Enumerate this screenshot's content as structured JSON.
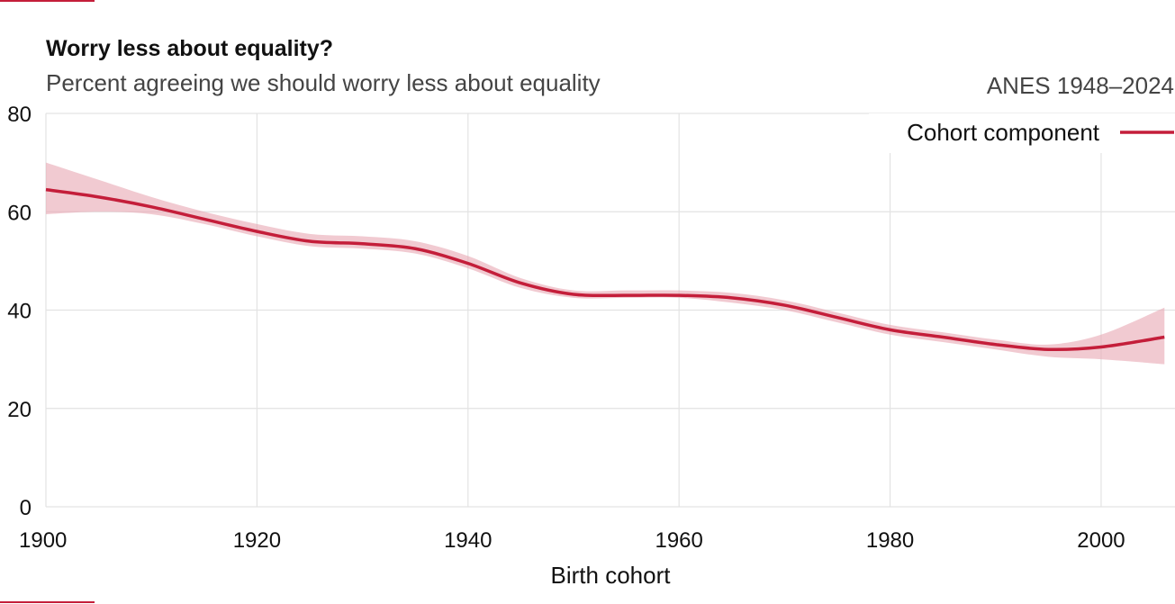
{
  "chart_data": {
    "type": "line",
    "title": "Worry less about equality?",
    "subtitle": "Percent agreeing we should worry less about equality",
    "source": "ANES 1948–2024",
    "xlabel": "Birth cohort",
    "ylabel": "",
    "xlim": [
      1900,
      2007
    ],
    "ylim": [
      0,
      80
    ],
    "x_ticks": [
      1900,
      1920,
      1940,
      1960,
      1980,
      2000
    ],
    "y_ticks": [
      0,
      20,
      40,
      60,
      80
    ],
    "grid": true,
    "legend_position": "top-right",
    "series": [
      {
        "name": "Cohort component",
        "color": "#c41e3a",
        "band_color": "#e8a7b3",
        "x": [
          1900,
          1905,
          1910,
          1915,
          1920,
          1925,
          1930,
          1935,
          1940,
          1945,
          1950,
          1955,
          1960,
          1965,
          1970,
          1975,
          1980,
          1985,
          1990,
          1995,
          2000,
          2006
        ],
        "y": [
          64.5,
          63.0,
          61.0,
          58.5,
          56.0,
          54.0,
          53.5,
          52.5,
          49.5,
          45.5,
          43.2,
          43.0,
          43.0,
          42.5,
          41.0,
          38.5,
          36.0,
          34.5,
          33.0,
          32.0,
          32.5,
          34.5
        ],
        "lower": [
          59.5,
          60.0,
          59.5,
          57.5,
          55.0,
          53.0,
          52.5,
          51.5,
          48.5,
          44.5,
          42.5,
          42.5,
          42.5,
          41.5,
          40.0,
          37.5,
          35.0,
          33.5,
          32.0,
          30.5,
          30.0,
          29.0
        ],
        "upper": [
          70.0,
          66.5,
          63.0,
          60.0,
          57.5,
          55.5,
          55.0,
          54.0,
          51.0,
          46.5,
          44.0,
          44.0,
          44.0,
          43.5,
          42.0,
          39.5,
          37.0,
          35.5,
          34.0,
          33.0,
          35.0,
          40.5
        ]
      }
    ]
  }
}
